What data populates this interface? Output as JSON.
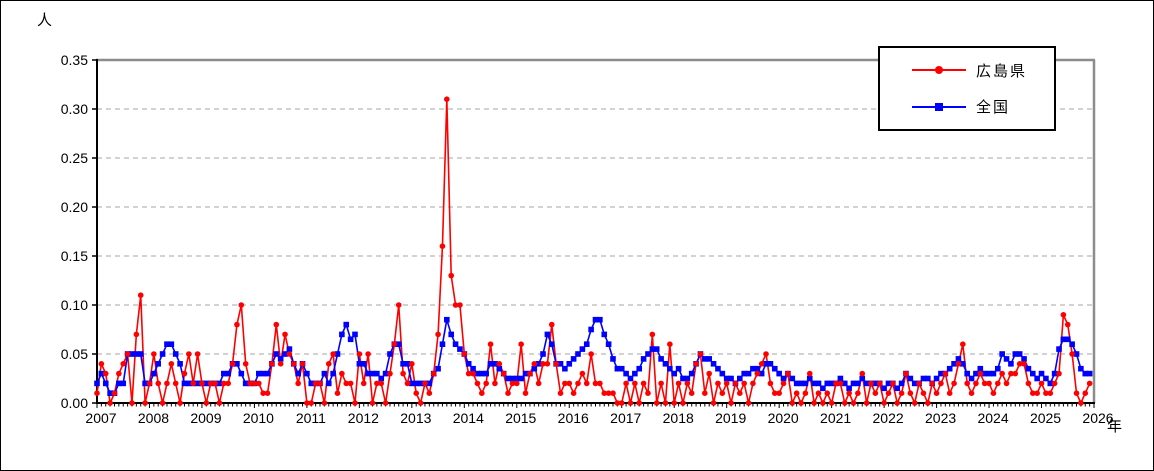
{
  "titles": {
    "y_unit": "人",
    "x_unit": "年"
  },
  "legend": {
    "items": [
      {
        "label": "広島県",
        "color": "#ff0000",
        "marker": "circle"
      },
      {
        "label": "全国",
        "color": "#0000ff",
        "marker": "square"
      }
    ]
  },
  "axes": {
    "y_ticks": [
      "0.00",
      "0.05",
      "0.10",
      "0.15",
      "0.20",
      "0.25",
      "0.30",
      "0.35"
    ],
    "x_ticks": [
      "2007",
      "2008",
      "2009",
      "2010",
      "2011",
      "2012",
      "2013",
      "2014",
      "2015",
      "2016",
      "2017",
      "2018",
      "2019",
      "2020",
      "2021",
      "2022",
      "2023",
      "2024",
      "2025",
      "2026"
    ]
  },
  "chart_data": {
    "type": "line",
    "title": "",
    "xlabel": "年",
    "ylabel": "人",
    "ylim": [
      0,
      0.35
    ],
    "y_tick_step": 0.05,
    "grid": "horizontal-dashed",
    "legend_position": "top-right",
    "x_interval": "monthly",
    "x_start": "2007-01",
    "x_end": "2025-12",
    "x_year_ticks": [
      "2007",
      "2008",
      "2009",
      "2010",
      "2011",
      "2012",
      "2013",
      "2014",
      "2015",
      "2016",
      "2017",
      "2018",
      "2019",
      "2020",
      "2021",
      "2022",
      "2023",
      "2024",
      "2025",
      "2026"
    ],
    "series": [
      {
        "name": "広島県",
        "color": "#ff0000",
        "marker": "circle",
        "values": [
          0.01,
          0.04,
          0.03,
          0.0,
          0.01,
          0.03,
          0.04,
          0.05,
          0.0,
          0.07,
          0.11,
          0.0,
          0.02,
          0.05,
          0.02,
          0.0,
          0.02,
          0.04,
          0.02,
          0.0,
          0.03,
          0.05,
          0.02,
          0.05,
          0.02,
          0.0,
          0.02,
          0.02,
          0.0,
          0.02,
          0.02,
          0.04,
          0.08,
          0.1,
          0.04,
          0.02,
          0.02,
          0.02,
          0.01,
          0.01,
          0.04,
          0.08,
          0.04,
          0.07,
          0.05,
          0.04,
          0.02,
          0.04,
          0.0,
          0.0,
          0.02,
          0.02,
          0.0,
          0.04,
          0.05,
          0.01,
          0.03,
          0.02,
          0.02,
          0.0,
          0.05,
          0.02,
          0.05,
          0.0,
          0.02,
          0.02,
          0.0,
          0.03,
          0.06,
          0.1,
          0.03,
          0.02,
          0.04,
          0.01,
          0.0,
          0.02,
          0.01,
          0.03,
          0.07,
          0.16,
          0.31,
          0.13,
          0.1,
          0.1,
          0.05,
          0.03,
          0.03,
          0.02,
          0.01,
          0.02,
          0.06,
          0.02,
          0.04,
          0.03,
          0.01,
          0.02,
          0.02,
          0.06,
          0.01,
          0.03,
          0.04,
          0.02,
          0.04,
          0.04,
          0.08,
          0.04,
          0.01,
          0.02,
          0.02,
          0.01,
          0.02,
          0.03,
          0.02,
          0.05,
          0.02,
          0.02,
          0.01,
          0.01,
          0.01,
          0.0,
          0.0,
          0.02,
          0.0,
          0.02,
          0.0,
          0.02,
          0.01,
          0.07,
          0.0,
          0.02,
          0.0,
          0.06,
          0.0,
          0.02,
          0.0,
          0.02,
          0.01,
          0.04,
          0.05,
          0.01,
          0.03,
          0.0,
          0.02,
          0.01,
          0.02,
          0.0,
          0.02,
          0.01,
          0.02,
          0.0,
          0.02,
          0.03,
          0.04,
          0.05,
          0.02,
          0.01,
          0.01,
          0.02,
          0.03,
          0.0,
          0.01,
          0.0,
          0.01,
          0.03,
          0.0,
          0.01,
          0.0,
          0.01,
          0.0,
          0.02,
          0.02,
          0.0,
          0.01,
          0.0,
          0.01,
          0.03,
          0.0,
          0.02,
          0.01,
          0.02,
          0.0,
          0.01,
          0.02,
          0.0,
          0.01,
          0.03,
          0.01,
          0.0,
          0.02,
          0.01,
          0.0,
          0.02,
          0.01,
          0.02,
          0.03,
          0.01,
          0.02,
          0.04,
          0.06,
          0.02,
          0.01,
          0.02,
          0.03,
          0.02,
          0.02,
          0.01,
          0.02,
          0.03,
          0.02,
          0.03,
          0.03,
          0.04,
          0.04,
          0.02,
          0.01,
          0.01,
          0.02,
          0.01,
          0.01,
          0.02,
          0.03,
          0.09,
          0.08,
          0.05,
          0.01,
          0.0,
          0.01,
          0.02
        ]
      },
      {
        "name": "全国",
        "color": "#0000ff",
        "marker": "square",
        "values": [
          0.02,
          0.03,
          0.02,
          0.01,
          0.01,
          0.02,
          0.02,
          0.05,
          0.05,
          0.05,
          0.05,
          0.02,
          0.02,
          0.03,
          0.04,
          0.05,
          0.06,
          0.06,
          0.05,
          0.04,
          0.02,
          0.02,
          0.02,
          0.02,
          0.02,
          0.02,
          0.02,
          0.02,
          0.02,
          0.03,
          0.03,
          0.04,
          0.04,
          0.03,
          0.02,
          0.02,
          0.02,
          0.03,
          0.03,
          0.03,
          0.04,
          0.05,
          0.045,
          0.05,
          0.055,
          0.04,
          0.03,
          0.04,
          0.03,
          0.02,
          0.02,
          0.02,
          0.03,
          0.02,
          0.03,
          0.05,
          0.07,
          0.08,
          0.065,
          0.07,
          0.04,
          0.04,
          0.03,
          0.03,
          0.03,
          0.025,
          0.03,
          0.05,
          0.06,
          0.06,
          0.04,
          0.04,
          0.02,
          0.02,
          0.02,
          0.02,
          0.02,
          0.03,
          0.035,
          0.06,
          0.085,
          0.07,
          0.06,
          0.055,
          0.05,
          0.04,
          0.035,
          0.03,
          0.03,
          0.03,
          0.04,
          0.04,
          0.035,
          0.03,
          0.025,
          0.025,
          0.025,
          0.025,
          0.03,
          0.03,
          0.035,
          0.04,
          0.05,
          0.07,
          0.06,
          0.04,
          0.04,
          0.035,
          0.04,
          0.045,
          0.05,
          0.055,
          0.06,
          0.075,
          0.085,
          0.085,
          0.07,
          0.06,
          0.045,
          0.035,
          0.035,
          0.03,
          0.025,
          0.03,
          0.035,
          0.045,
          0.05,
          0.055,
          0.055,
          0.045,
          0.04,
          0.035,
          0.03,
          0.035,
          0.025,
          0.025,
          0.03,
          0.04,
          0.05,
          0.045,
          0.045,
          0.04,
          0.035,
          0.03,
          0.025,
          0.025,
          0.02,
          0.025,
          0.03,
          0.03,
          0.035,
          0.035,
          0.03,
          0.04,
          0.04,
          0.035,
          0.03,
          0.025,
          0.03,
          0.025,
          0.02,
          0.02,
          0.02,
          0.025,
          0.02,
          0.02,
          0.015,
          0.02,
          0.02,
          0.02,
          0.025,
          0.02,
          0.015,
          0.02,
          0.02,
          0.025,
          0.02,
          0.02,
          0.02,
          0.02,
          0.015,
          0.02,
          0.02,
          0.015,
          0.02,
          0.03,
          0.025,
          0.02,
          0.02,
          0.025,
          0.025,
          0.02,
          0.025,
          0.03,
          0.03,
          0.035,
          0.04,
          0.045,
          0.04,
          0.03,
          0.025,
          0.03,
          0.035,
          0.03,
          0.03,
          0.03,
          0.035,
          0.05,
          0.045,
          0.04,
          0.05,
          0.05,
          0.045,
          0.035,
          0.03,
          0.025,
          0.03,
          0.025,
          0.02,
          0.03,
          0.055,
          0.065,
          0.065,
          0.06,
          0.05,
          0.035,
          0.03,
          0.03
        ]
      }
    ],
    "colors": {
      "series_hiroshima": "#ff0000",
      "series_national": "#0000ff",
      "gridline": "#a6a6a6",
      "frame": "#8c8c8c",
      "axis": "#000000",
      "background": "#ffffff"
    }
  }
}
